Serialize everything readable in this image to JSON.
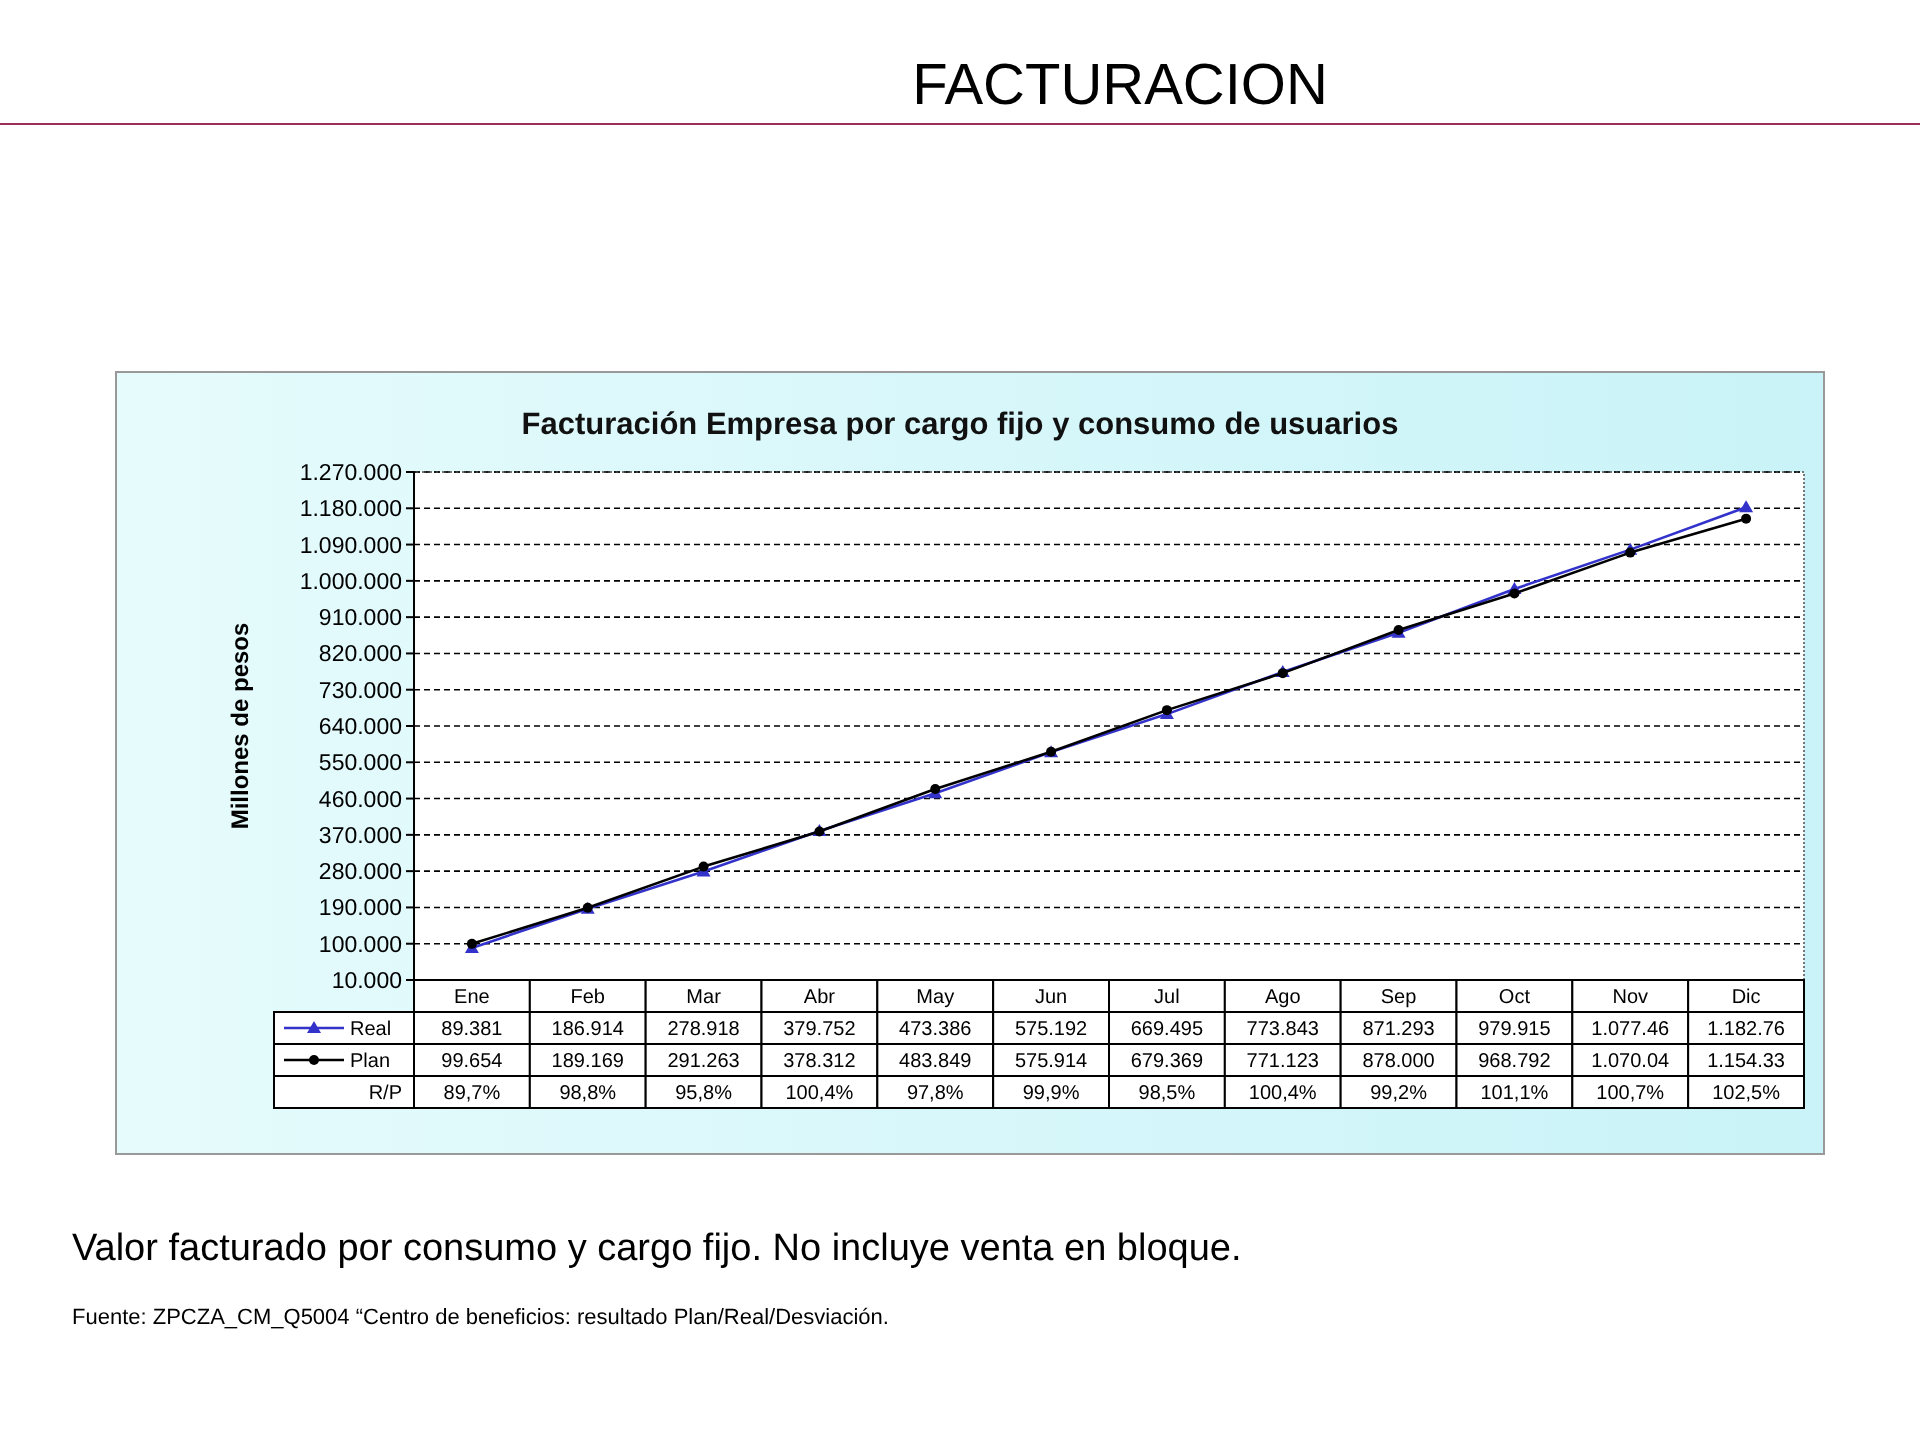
{
  "chart_data": {
    "type": "line",
    "title": "FACTURACION",
    "subtitle": "Facturación Empresa por cargo fijo y consumo de usuarios",
    "ylabel": "Millones de pesos",
    "categories": [
      "Ene",
      "Feb",
      "Mar",
      "Abr",
      "May",
      "Jun",
      "Jul",
      "Ago",
      "Sep",
      "Oct",
      "Nov",
      "Dic"
    ],
    "series": [
      {
        "name": "Real",
        "color": "#3333cc",
        "marker": "triangle",
        "values": [
          89381,
          186914,
          278918,
          379752,
          473386,
          575192,
          669495,
          773843,
          871293,
          979915,
          1077460,
          1182760
        ],
        "value_labels": [
          "89.381",
          "186.914",
          "278.918",
          "379.752",
          "473.386",
          "575.192",
          "669.495",
          "773.843",
          "871.293",
          "979.915",
          "1.077.46",
          "1.182.76"
        ]
      },
      {
        "name": "Plan",
        "color": "#000000",
        "marker": "circle",
        "values": [
          99654,
          189169,
          291263,
          378312,
          483849,
          575914,
          679369,
          771123,
          878000,
          968792,
          1070040,
          1154330
        ],
        "value_labels": [
          "99.654",
          "189.169",
          "291.263",
          "378.312",
          "483.849",
          "575.914",
          "679.369",
          "771.123",
          "878.000",
          "968.792",
          "1.070.04",
          "1.154.33"
        ]
      }
    ],
    "ylim": [
      10000,
      1270000
    ],
    "yticks": [
      {
        "value": 10000,
        "label": "10.000"
      },
      {
        "value": 100000,
        "label": "100.000"
      },
      {
        "value": 190000,
        "label": "190.000"
      },
      {
        "value": 280000,
        "label": "280.000"
      },
      {
        "value": 370000,
        "label": "370.000"
      },
      {
        "value": 460000,
        "label": "460.000"
      },
      {
        "value": 550000,
        "label": "550.000"
      },
      {
        "value": 640000,
        "label": "640.000"
      },
      {
        "value": 730000,
        "label": "730.000"
      },
      {
        "value": 820000,
        "label": "820.000"
      },
      {
        "value": 910000,
        "label": "910.000"
      },
      {
        "value": 1000000,
        "label": "1.000.000"
      },
      {
        "value": 1090000,
        "label": "1.090.000"
      },
      {
        "value": 1180000,
        "label": "1.180.000"
      },
      {
        "value": 1270000,
        "label": "1.270.000"
      }
    ],
    "grid": "y",
    "line_style": "solid",
    "legend": "bottom",
    "annotations": [
      "R/P",
      "89,7%",
      "98,8%",
      "95,8%",
      "100,4%",
      "97,8%",
      "99,9%",
      "98,5%",
      "100,4%",
      "99,2%",
      "101,1%",
      "100,7%",
      "102,5%",
      "Valor facturado por consumo y cargo fijo. No incluye venta en bloque.",
      "Fuente:  ZPCZA_CM_Q5004  “Centro de beneficios: resultado Plan/Real/Desviación."
    ]
  }
}
